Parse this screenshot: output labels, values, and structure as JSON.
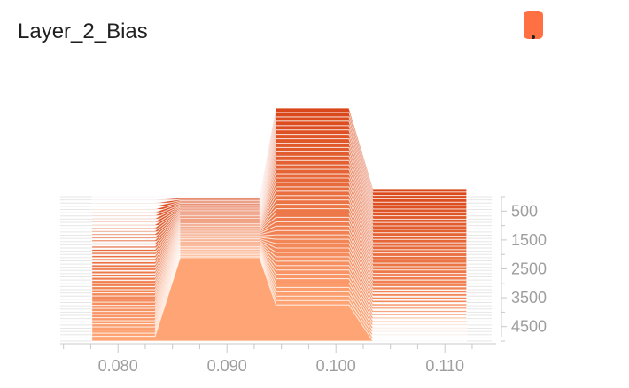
{
  "title": "Layer_2_Bias",
  "toggle_icon": "dot-icon",
  "colors": {
    "front": "#ffa575",
    "back": "#d9471a",
    "axis": "#c8c8c8",
    "gridline": "#e6e6e6"
  },
  "chart_data": {
    "type": "area",
    "style": "histogram-offset",
    "xlabel": "",
    "ylabel": "",
    "x_ticks": [
      0.08,
      0.09,
      0.1,
      0.11
    ],
    "x_tick_labels": [
      "0.080",
      "0.090",
      "0.100",
      "0.110"
    ],
    "y_ticks": [
      500,
      1500,
      2500,
      3500,
      4500
    ],
    "y_tick_labels": [
      "500",
      "1500",
      "2500",
      "3500",
      "4500"
    ],
    "xlim": [
      0.0747,
      0.1147
    ],
    "step_range": [
      0,
      5000
    ],
    "grid": false,
    "legend": "none",
    "series": [
      {
        "step": 5000,
        "points": [
          [
            0.0776,
            0.27
          ],
          [
            0.0834,
            0.27
          ],
          [
            0.0857,
            4.71
          ],
          [
            0.093,
            4.71
          ],
          [
            0.0945,
            2.04
          ],
          [
            0.1012,
            2.04
          ],
          [
            0.1034,
            0.0
          ],
          [
            0.112,
            0.0
          ]
        ]
      },
      {
        "step": 0,
        "points": [
          [
            0.0776,
            0.0
          ],
          [
            0.0834,
            0.0
          ],
          [
            0.0857,
            0.0
          ],
          [
            0.093,
            0.0
          ],
          [
            0.0945,
            5.0
          ],
          [
            0.1012,
            5.0
          ],
          [
            0.1034,
            0.45
          ],
          [
            0.112,
            0.45
          ]
        ]
      }
    ]
  }
}
